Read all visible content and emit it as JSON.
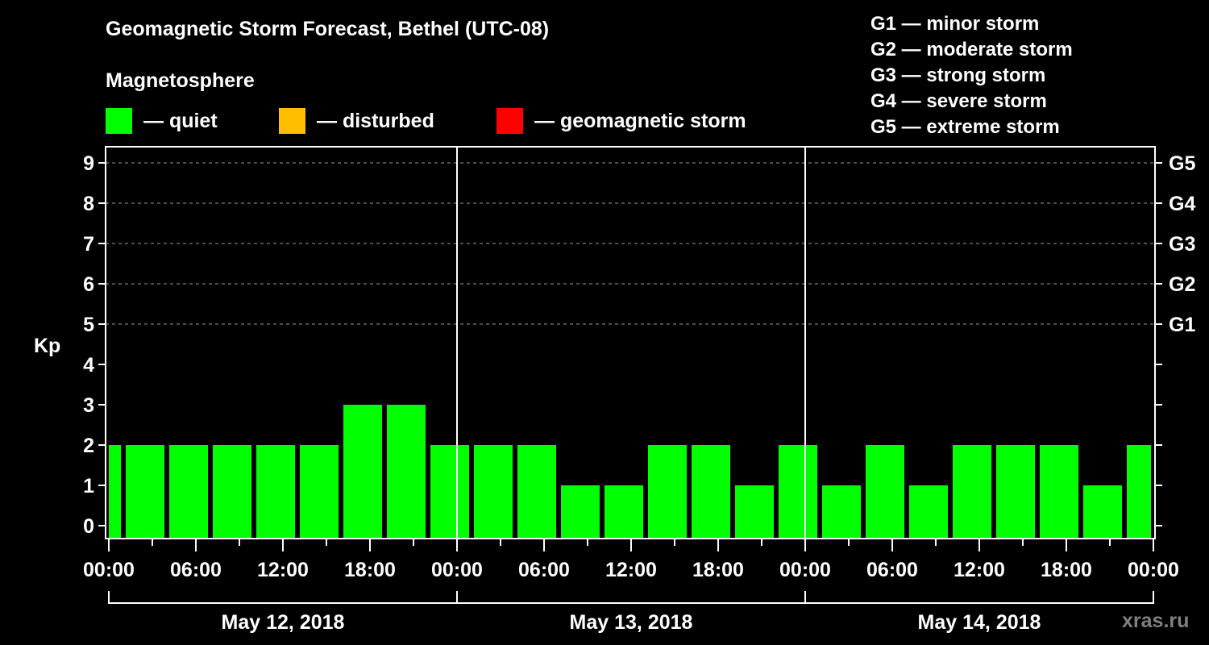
{
  "header": {
    "title": "Geomagnetic Storm Forecast, Bethel (UTC-08)",
    "subtitle": "Magnetosphere"
  },
  "legend": [
    {
      "label": "— quiet",
      "color": "#00ff00"
    },
    {
      "label": "— disturbed",
      "color": "#ffbf00"
    },
    {
      "label": "— geomagnetic storm",
      "color": "#ff0000"
    }
  ],
  "g_scale": [
    "G1 — minor storm",
    "G2 — moderate storm",
    "G3 — strong storm",
    "G4 — severe storm",
    "G5 — extreme storm"
  ],
  "watermark": "xras.ru",
  "chart_data": {
    "type": "bar",
    "title": "Geomagnetic Storm Forecast, Bethel (UTC-08)",
    "xlabel": "",
    "ylabel": "Kp",
    "ylim": [
      0,
      9
    ],
    "yticks": [
      0,
      1,
      2,
      3,
      4,
      5,
      6,
      7,
      8,
      9
    ],
    "right_axis_labels": [
      {
        "kp": 5,
        "label": "G1"
      },
      {
        "kp": 6,
        "label": "G2"
      },
      {
        "kp": 7,
        "label": "G3"
      },
      {
        "kp": 8,
        "label": "G4"
      },
      {
        "kp": 9,
        "label": "G5"
      }
    ],
    "grid": "dashed horizontal at Kp 5-9",
    "x_tick_labels": [
      "00:00",
      "06:00",
      "12:00",
      "18:00",
      "00:00",
      "06:00",
      "12:00",
      "18:00",
      "00:00",
      "06:00",
      "12:00",
      "18:00",
      "00:00"
    ],
    "dates": [
      "May 12, 2018",
      "May 13, 2018",
      "May 14, 2018"
    ],
    "bar_slot_hours": 3,
    "bar_offset_hours": 1,
    "note": "Bars are 3-hour intervals starting at 01:00 local; first and last bars are partial (clipped at the axis edges).",
    "values": [
      2,
      2,
      2,
      2,
      2,
      2,
      3,
      3,
      2,
      2,
      2,
      1,
      1,
      2,
      2,
      1,
      2,
      1,
      2,
      1,
      2,
      2,
      2,
      1,
      2
    ],
    "colors": {
      "quiet": "#00ff00",
      "disturbed": "#ffbf00",
      "storm": "#ff0000"
    }
  }
}
